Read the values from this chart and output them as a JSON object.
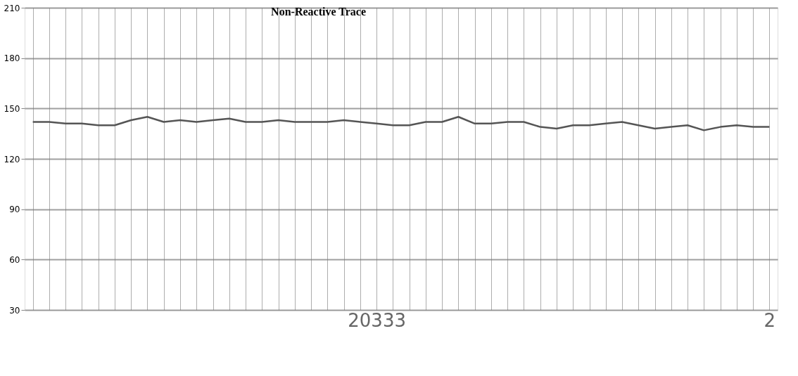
{
  "chart_data": {
    "type": "line",
    "title": "Non-Reactive Trace",
    "categories": [
      null,
      null,
      null,
      null,
      null,
      null,
      null,
      null,
      null,
      null,
      null,
      null,
      null,
      null,
      null,
      null,
      null,
      null,
      null,
      null,
      null,
      "20333",
      null,
      null,
      null,
      null,
      null,
      null,
      null,
      null,
      null,
      null,
      null,
      null,
      null,
      null,
      null,
      null,
      null,
      null,
      null,
      null,
      null,
      null,
      null,
      "2"
    ],
    "series": [
      {
        "color": "#555555",
        "values": [
          142,
          142,
          141,
          141,
          140,
          140,
          143,
          145,
          142,
          143,
          142,
          143,
          144,
          142,
          142,
          143,
          142,
          142,
          142,
          143,
          142,
          141,
          140,
          140,
          142,
          142,
          145,
          141,
          141,
          142,
          142,
          139,
          138,
          140,
          140,
          141,
          142,
          140,
          138,
          139,
          140,
          137,
          139,
          140,
          139,
          139
        ]
      }
    ],
    "ylim": [
      30,
      210
    ],
    "yticks": [
      30,
      60,
      90,
      120,
      150,
      180,
      210
    ],
    "grid": true,
    "marker": "none",
    "line_style": "solid",
    "legend": false
  }
}
